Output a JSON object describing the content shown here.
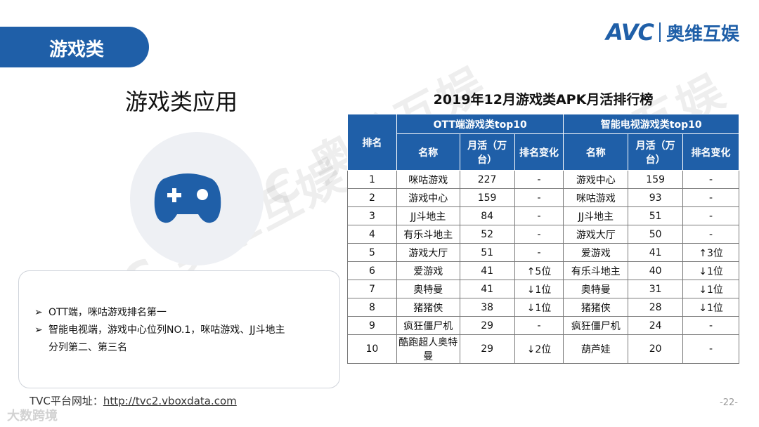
{
  "header": {
    "section_tag": "游戏类",
    "logo_en": "AVC",
    "logo_cn": "奥维互娱"
  },
  "left": {
    "app_title": "游戏类应用",
    "icon": "gamepad-icon",
    "notes": [
      "OTT端，咪咕游戏排名第一",
      "智能电视端，游戏中心位列NO.1，咪咕游戏、JJ斗地主",
      "分列第二、第三名"
    ],
    "url_label": "TVC平台网址：",
    "url_link": "http://tvc2.vboxdata.com"
  },
  "table": {
    "title": "2019年12月游戏类APK月活排行榜",
    "rank_header": "排名",
    "group_ott": "OTT端游戏类top10",
    "group_tv": "智能电视游戏类top10",
    "col_name": "名称",
    "col_mau": "月活（万台）",
    "col_change": "排名变化",
    "rows": [
      {
        "rank": "1",
        "ott_name": "咪咕游戏",
        "ott_mau": "227",
        "ott_change": "-",
        "ott_dir": "none",
        "tv_name": "游戏中心",
        "tv_mau": "159",
        "tv_change": "-",
        "tv_dir": "none"
      },
      {
        "rank": "2",
        "ott_name": "游戏中心",
        "ott_mau": "159",
        "ott_change": "-",
        "ott_dir": "none",
        "tv_name": "咪咕游戏",
        "tv_mau": "93",
        "tv_change": "-",
        "tv_dir": "none"
      },
      {
        "rank": "3",
        "ott_name": "JJ斗地主",
        "ott_mau": "84",
        "ott_change": "-",
        "ott_dir": "none",
        "tv_name": "JJ斗地主",
        "tv_mau": "51",
        "tv_change": "-",
        "tv_dir": "none"
      },
      {
        "rank": "4",
        "ott_name": "有乐斗地主",
        "ott_mau": "52",
        "ott_change": "-",
        "ott_dir": "none",
        "tv_name": "游戏大厅",
        "tv_mau": "50",
        "tv_change": "-",
        "tv_dir": "none"
      },
      {
        "rank": "5",
        "ott_name": "游戏大厅",
        "ott_mau": "51",
        "ott_change": "-",
        "ott_dir": "none",
        "tv_name": "爱游戏",
        "tv_mau": "41",
        "tv_change": "↑3位",
        "tv_dir": "up"
      },
      {
        "rank": "6",
        "ott_name": "爱游戏",
        "ott_mau": "41",
        "ott_change": "↑5位",
        "ott_dir": "up",
        "tv_name": "有乐斗地主",
        "tv_mau": "40",
        "tv_change": "↓1位",
        "tv_dir": "down"
      },
      {
        "rank": "7",
        "ott_name": "奥特曼",
        "ott_mau": "41",
        "ott_change": "↓1位",
        "ott_dir": "down",
        "tv_name": "奥特曼",
        "tv_mau": "31",
        "tv_change": "↓1位",
        "tv_dir": "down"
      },
      {
        "rank": "8",
        "ott_name": "猪猪侠",
        "ott_mau": "38",
        "ott_change": "↓1位",
        "ott_dir": "down",
        "tv_name": "猪猪侠",
        "tv_mau": "28",
        "tv_change": "↓1位",
        "tv_dir": "down"
      },
      {
        "rank": "9",
        "ott_name": "疯狂僵尸机",
        "ott_mau": "29",
        "ott_change": "-",
        "ott_dir": "none",
        "tv_name": "疯狂僵尸机",
        "tv_mau": "24",
        "tv_change": "-",
        "tv_dir": "none"
      },
      {
        "rank": "10",
        "ott_name": "酷跑超人奥特曼",
        "ott_mau": "29",
        "ott_change": "↓2位",
        "ott_dir": "down",
        "tv_name": "葫芦娃",
        "tv_mau": "20",
        "tv_change": "-",
        "tv_dir": "none"
      }
    ]
  },
  "footer": {
    "page_number": "-22-",
    "brand_watermark": "大数跨境"
  },
  "watermark_text": "AVC 奥维互娱",
  "colors": {
    "brand_blue": "#1f5fa8",
    "up": "#d93025",
    "down": "#1e8c3a"
  }
}
